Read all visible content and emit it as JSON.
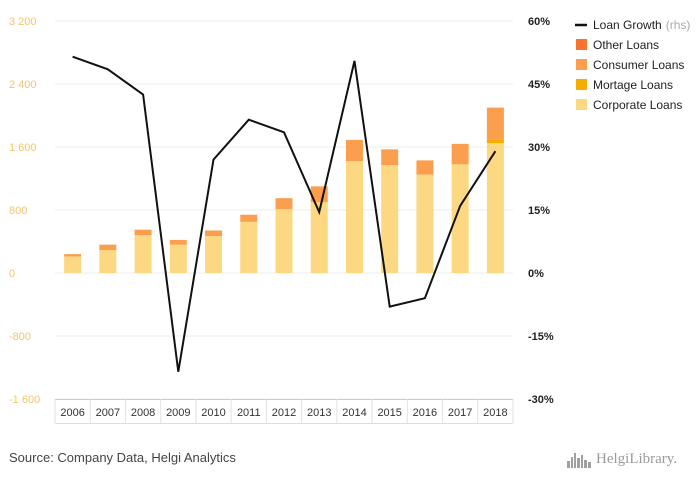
{
  "chart_data": {
    "type": "bar",
    "categories": [
      "2006",
      "2007",
      "2008",
      "2009",
      "2010",
      "2011",
      "2012",
      "2013",
      "2014",
      "2015",
      "2016",
      "2017",
      "2018"
    ],
    "series": [
      {
        "name": "Corporate Loans",
        "color": "#fdd882",
        "values": [
          210,
          290,
          480,
          360,
          470,
          650,
          810,
          900,
          1420,
          1370,
          1250,
          1380,
          1650
        ]
      },
      {
        "name": "Mortage Loans",
        "color": "#f5ae00",
        "values": [
          0,
          0,
          0,
          0,
          0,
          0,
          0,
          0,
          0,
          0,
          0,
          0,
          40
        ]
      },
      {
        "name": "Consumer Loans",
        "color": "#fb9e4e",
        "values": [
          30,
          70,
          70,
          60,
          70,
          90,
          140,
          200,
          270,
          200,
          180,
          260,
          410
        ]
      },
      {
        "name": "Other Loans",
        "color": "#f9722f",
        "values": [
          0,
          0,
          0,
          0,
          0,
          0,
          0,
          0,
          0,
          0,
          0,
          0,
          0
        ]
      }
    ],
    "line_series": {
      "name": "Loan Growth",
      "name_suffix": "(rhs)",
      "color": "#111111",
      "values": [
        51.5,
        48.5,
        42.5,
        -23.5,
        27,
        36.5,
        33.5,
        14.5,
        50.5,
        -8,
        -6,
        16,
        29
      ]
    },
    "left_axis": {
      "ylim": [
        -1600,
        3200
      ],
      "ticks": [
        "-1 600",
        "-800",
        "0",
        "800",
        "1 600",
        "2 400",
        "3 200"
      ],
      "tick_values": [
        -1600,
        -800,
        0,
        800,
        1600,
        2400,
        3200
      ]
    },
    "right_axis": {
      "ylim": [
        -30,
        60
      ],
      "ticks": [
        "-30%",
        "-15%",
        "0%",
        "15%",
        "30%",
        "45%",
        "60%"
      ],
      "tick_values": [
        -30,
        -15,
        0,
        15,
        30,
        45,
        60
      ]
    },
    "legend": [
      {
        "label": "Loan Growth",
        "suffix": "(rhs)",
        "type": "line",
        "color": "#111111"
      },
      {
        "label": "Other Loans",
        "type": "box",
        "color": "#f9722f"
      },
      {
        "label": "Consumer Loans",
        "type": "box",
        "color": "#fb9e4e"
      },
      {
        "label": "Mortage Loans",
        "type": "box",
        "color": "#f5ae00"
      },
      {
        "label": "Corporate Loans",
        "type": "box",
        "color": "#fdd882"
      }
    ],
    "legend_position": "right",
    "grid": true
  },
  "footer": {
    "source": "Source: Company Data, Helgi Analytics",
    "logo_text": "HelgiLibrary."
  },
  "icons": {
    "logo": "skyline-icon"
  }
}
